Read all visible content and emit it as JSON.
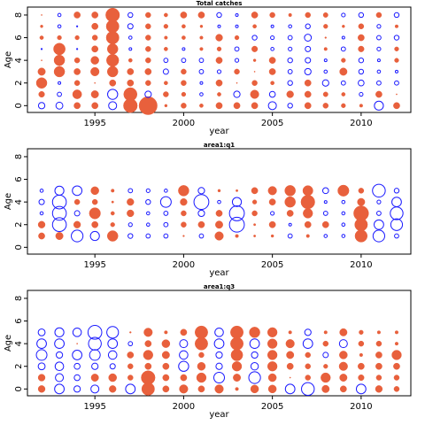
{
  "chart_data": [
    {
      "type": "scatter",
      "title": "Total catches",
      "xlabel": "year",
      "ylabel": "Age",
      "xlim": [
        1991.2,
        2012.8
      ],
      "ylim": [
        -0.6,
        8.7
      ],
      "xticks": [
        1995,
        2000,
        2005,
        2010
      ],
      "yticks": [
        0,
        2,
        4,
        6,
        8
      ],
      "legend": "none",
      "colors": {
        "positive": "#e8603c",
        "negative": "#1a1aff"
      },
      "years": [
        1992,
        1993,
        1994,
        1995,
        1996,
        1997,
        1998,
        1999,
        2000,
        2001,
        2002,
        2003,
        2004,
        2005,
        2006,
        2007,
        2008,
        2009,
        2010,
        2011,
        2012
      ],
      "ages": [
        0,
        1,
        2,
        3,
        4,
        5,
        6,
        7,
        8
      ],
      "residuals": [
        [
          -1.2,
          1.1,
          2.0,
          1.4,
          0.1,
          -0.2,
          0.7,
          0.5,
          0.1
        ],
        [
          -1.3,
          -0.8,
          -0.5,
          2.0,
          2.0,
          2.2,
          0.8,
          -0.6,
          -0.6
        ],
        [
          1.2,
          1.7,
          1.0,
          1.2,
          1.0,
          -0.2,
          0.8,
          -0.2,
          1.2
        ],
        [
          1.2,
          1.4,
          0.1,
          1.6,
          1.5,
          1.2,
          1.0,
          1.2,
          1.2
        ],
        [
          -1.5,
          -1.9,
          1.2,
          2.0,
          2.3,
          2.0,
          2.4,
          2.4,
          2.6
        ],
        [
          2.6,
          2.5,
          1.2,
          1.2,
          0.7,
          -0.5,
          -0.6,
          -1.0,
          -0.9
        ],
        [
          3.4,
          -1.2,
          1.0,
          1.2,
          1.0,
          1.0,
          1.0,
          1.0,
          1.0
        ],
        [
          0.5,
          1.0,
          0.7,
          -1.0,
          -0.8,
          0.7,
          0.6,
          0.8,
          0.7
        ],
        [
          1.0,
          0.8,
          1.0,
          1.0,
          -0.8,
          -0.5,
          0.7,
          0.7,
          1.2
        ],
        [
          0.7,
          -0.6,
          -0.5,
          -0.8,
          -0.8,
          0.6,
          0.6,
          0.5,
          1.2
        ],
        [
          1.2,
          0.7,
          1.2,
          -0.7,
          1.2,
          0.8,
          1.3,
          -0.5,
          -0.9
        ],
        [
          1.2,
          -1.2,
          0.1,
          1.0,
          -0.7,
          -0.8,
          0.8,
          -0.5,
          -0.5
        ],
        [
          1.2,
          1.6,
          1.0,
          0.2,
          0.5,
          1.1,
          -0.9,
          0.7,
          1.2
        ],
        [
          -1.5,
          -1.1,
          0.7,
          1.2,
          1.2,
          -0.6,
          -0.7,
          -0.5,
          1.0
        ],
        [
          -0.9,
          1.3,
          -0.9,
          -0.8,
          -0.9,
          -0.7,
          -0.8,
          -0.6,
          0.6
        ],
        [
          1.2,
          1.2,
          1.2,
          -1.2,
          -1.0,
          -1.0,
          -1.3,
          -0.9,
          1.0
        ],
        [
          1.0,
          0.9,
          -1.2,
          -0.6,
          -0.5,
          0.6,
          0.3,
          0.8,
          0.9
        ],
        [
          0.8,
          0.7,
          -0.8,
          1.4,
          0.8,
          -0.8,
          -0.5,
          0.5,
          -0.7
        ],
        [
          0.6,
          -0.7,
          -1.1,
          -0.9,
          -0.9,
          1.1,
          1.2,
          1.0,
          -0.9
        ],
        [
          -1.7,
          1.2,
          -0.8,
          -0.6,
          -0.5,
          -0.7,
          -0.8,
          -0.7,
          1.0
        ],
        [
          1.2,
          0.1,
          -0.8,
          -0.5,
          0.8,
          0.8,
          -0.9,
          0.6,
          -0.9
        ]
      ]
    },
    {
      "type": "scatter",
      "title": "area1:q1",
      "xlabel": "year",
      "ylabel": "Age",
      "xlim": [
        1991.2,
        2012.8
      ],
      "ylim": [
        -0.6,
        8.7
      ],
      "xticks": [
        1995,
        2000,
        2005,
        2010
      ],
      "yticks": [
        0,
        2,
        4,
        6,
        8
      ],
      "legend": "none",
      "colors": {
        "positive": "#e8603c",
        "negative": "#1a1aff"
      },
      "years": [
        1992,
        1993,
        1994,
        1995,
        1996,
        1997,
        1998,
        1999,
        2000,
        2001,
        2002,
        2003,
        2004,
        2005,
        2006,
        2007,
        2008,
        2009,
        2010,
        2011,
        2012
      ],
      "ages": [
        1,
        2,
        3,
        4,
        5
      ],
      "residuals": [
        [
          1.2,
          1.3,
          -0.6,
          -1.0,
          -0.6
        ],
        [
          1.4,
          -2.6,
          -2.6,
          -2.6,
          -1.7
        ],
        [
          -2.2,
          1.3,
          -1.0,
          1.0,
          -1.8
        ],
        [
          -1.7,
          1.2,
          2.1,
          1.0,
          1.5
        ],
        [
          2.0,
          0.8,
          0.7,
          0.4,
          0.6
        ],
        [
          -0.9,
          -0.7,
          1.3,
          1.3,
          -0.8
        ],
        [
          -0.8,
          -0.6,
          -0.6,
          -0.9,
          -0.7
        ],
        [
          -0.8,
          -0.8,
          -0.8,
          -2.0,
          -0.6
        ],
        [
          0.3,
          1.0,
          1.0,
          1.3,
          2.0
        ],
        [
          -0.8,
          1.2,
          -1.2,
          -2.8,
          -1.2
        ],
        [
          1.6,
          1.4,
          1.2,
          -0.6,
          0.5
        ],
        [
          0.6,
          -2.8,
          -2.8,
          -1.7,
          0.4
        ],
        [
          0.4,
          0.4,
          1.0,
          0.8,
          1.2
        ],
        [
          0.5,
          1.2,
          -0.7,
          1.2,
          1.6
        ],
        [
          -0.8,
          -0.5,
          1.2,
          2.0,
          2.0
        ],
        [
          0.6,
          1.2,
          1.8,
          2.6,
          1.9
        ],
        [
          -0.6,
          1.2,
          -0.8,
          -0.5,
          -1.1
        ],
        [
          -0.6,
          -0.6,
          -0.6,
          -0.6,
          2.1
        ],
        [
          2.3,
          2.4,
          2.8,
          1.4,
          1.0
        ],
        [
          -2.2,
          -1.8,
          -0.8,
          -0.7,
          -2.4
        ],
        [
          -0.8,
          -2.2,
          -2.4,
          -1.8,
          -0.9
        ]
      ]
    },
    {
      "type": "scatter",
      "title": "area1:q3",
      "xlabel": "year",
      "ylabel": "Age",
      "xlim": [
        1991.2,
        2012.8
      ],
      "ylim": [
        -0.6,
        8.7
      ],
      "xticks": [
        1995,
        2000,
        2005,
        2010
      ],
      "yticks": [
        0,
        2,
        4,
        6,
        8
      ],
      "legend": "none",
      "colors": {
        "positive": "#e8603c",
        "negative": "#1a1aff"
      },
      "years": [
        1992,
        1993,
        1994,
        1995,
        1996,
        1997,
        1998,
        1999,
        2000,
        2001,
        2002,
        2003,
        2004,
        2005,
        2006,
        2007,
        2008,
        2009,
        2010,
        2011,
        2012
      ],
      "ages": [
        0,
        1,
        2,
        3,
        4,
        5
      ],
      "residuals": [
        [
          1.3,
          1.3,
          -1.3,
          -2.0,
          -1.8,
          -1.3
        ],
        [
          -1.8,
          -1.5,
          -1.6,
          -1.2,
          -1.8,
          -1.7
        ],
        [
          -1.2,
          -1.1,
          -1.1,
          -1.8,
          0.1,
          -1.6
        ],
        [
          -1.5,
          1.4,
          -1.2,
          -2.0,
          -2.4,
          -2.6
        ],
        [
          1.3,
          1.5,
          -1.0,
          -1.6,
          -1.8,
          -2.2
        ],
        [
          -1.8,
          1.0,
          1.0,
          1.2,
          -0.8,
          0.3
        ],
        [
          2.4,
          2.6,
          1.2,
          1.8,
          1.2,
          1.6
        ],
        [
          1.2,
          1.2,
          1.2,
          1.4,
          1.5,
          0.6
        ],
        [
          1.6,
          1.2,
          -1.9,
          -1.6,
          -1.5,
          1.2
        ],
        [
          1.2,
          1.8,
          1.5,
          1.0,
          2.4,
          2.4
        ],
        [
          1.6,
          -2.0,
          -1.2,
          -1.2,
          -1.8,
          -1.6
        ],
        [
          0.6,
          1.4,
          1.8,
          2.2,
          2.4,
          2.4
        ],
        [
          1.5,
          -2.2,
          -1.4,
          -1.2,
          -1.8,
          2.0
        ],
        [
          1.5,
          1.5,
          1.8,
          1.8,
          1.8,
          1.8
        ],
        [
          -1.8,
          0.2,
          1.2,
          1.4,
          1.6,
          0.6
        ],
        [
          -2.4,
          1.0,
          1.0,
          1.0,
          -1.8,
          -1.2
        ],
        [
          1.4,
          1.8,
          0.8,
          -1.0,
          1.0,
          0.6
        ],
        [
          1.2,
          1.4,
          1.6,
          1.5,
          -1.5,
          1.4
        ],
        [
          -1.8,
          1.1,
          1.2,
          0.6,
          1.0,
          0.8
        ],
        [
          1.3,
          1.0,
          1.2,
          1.2,
          1.0,
          0.6
        ],
        [
          1.0,
          1.0,
          1.2,
          1.8,
          0.6,
          0.6
        ]
      ]
    }
  ]
}
